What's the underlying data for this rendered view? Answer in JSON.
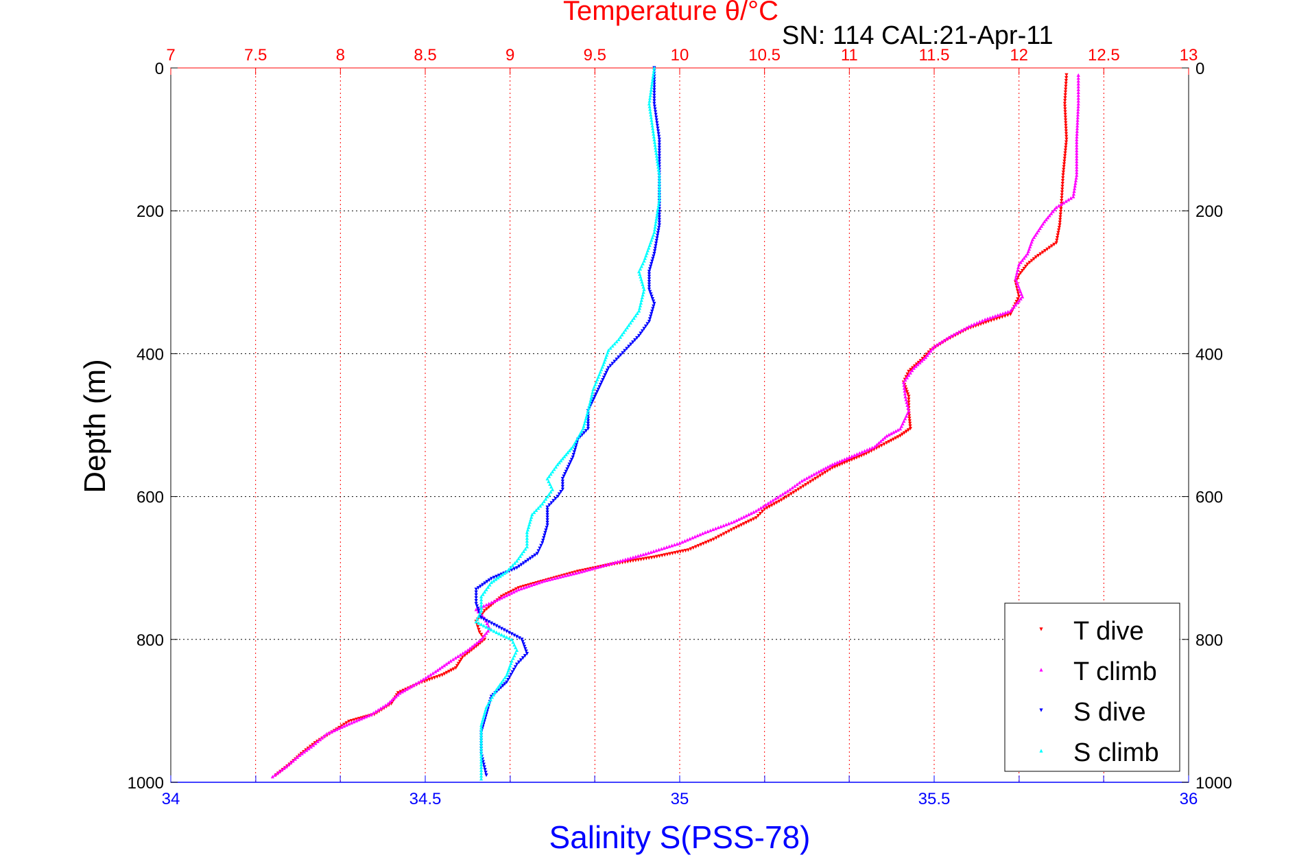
{
  "chart_data": {
    "type": "scatter",
    "title_top": "Temperature θ/°C",
    "subtitle": "SN: 114  CAL:21-Apr-11",
    "ylabel": "Depth (m)",
    "xlabel_bottom": "Salinity S(PSS-78)",
    "ylim": [
      0,
      1000
    ],
    "y_reversed": true,
    "y_ticks": [
      0,
      200,
      400,
      600,
      800,
      1000
    ],
    "y_tick_labels": [
      "0",
      "200",
      "400",
      "600",
      "800",
      "1000"
    ],
    "x_top_axis": {
      "quantity": "temperature",
      "range": [
        7,
        13
      ],
      "ticks": [
        7,
        7.5,
        8,
        8.5,
        9,
        9.5,
        10,
        10.5,
        11,
        11.5,
        12,
        12.5,
        13
      ],
      "tick_labels": [
        "7",
        "7.5",
        "8",
        "8.5",
        "9",
        "9.5",
        "10",
        "10.5",
        "11",
        "11.5",
        "12",
        "12.5",
        "13"
      ],
      "color": "#ff0000"
    },
    "x_bottom_axis": {
      "quantity": "salinity",
      "range": [
        34,
        36
      ],
      "ticks": [
        34,
        34.5,
        35,
        35.5,
        36
      ],
      "tick_labels": [
        "34",
        "34.5",
        "35",
        "35.5",
        "36"
      ],
      "minor_ticks": [
        34.167,
        34.333,
        34.667,
        34.833,
        35.167,
        35.333,
        35.667,
        35.833
      ],
      "color": "#0000ff"
    },
    "grid": true,
    "legend_position": "bottom-right",
    "legend": [
      "T dive",
      "T climb",
      "S dive",
      "S climb"
    ],
    "series": [
      {
        "name": "T dive",
        "axis": "top",
        "color": "#ff0000",
        "marker": "triangle-down",
        "points": [
          [
            12.28,
            10
          ],
          [
            12.27,
            50
          ],
          [
            12.28,
            100
          ],
          [
            12.26,
            150
          ],
          [
            12.25,
            190
          ],
          [
            12.24,
            220
          ],
          [
            12.22,
            245
          ],
          [
            12.1,
            265
          ],
          [
            12.05,
            275
          ],
          [
            12.0,
            290
          ],
          [
            11.98,
            300
          ],
          [
            12.0,
            320
          ],
          [
            11.95,
            345
          ],
          [
            11.82,
            355
          ],
          [
            11.7,
            365
          ],
          [
            11.58,
            380
          ],
          [
            11.48,
            395
          ],
          [
            11.42,
            410
          ],
          [
            11.35,
            425
          ],
          [
            11.32,
            440
          ],
          [
            11.35,
            460
          ],
          [
            11.35,
            480
          ],
          [
            11.36,
            505
          ],
          [
            11.3,
            515
          ],
          [
            11.22,
            525
          ],
          [
            11.1,
            540
          ],
          [
            11.0,
            550
          ],
          [
            10.9,
            560
          ],
          [
            10.8,
            575
          ],
          [
            10.7,
            590
          ],
          [
            10.6,
            605
          ],
          [
            10.5,
            618
          ],
          [
            10.45,
            630
          ],
          [
            10.32,
            645
          ],
          [
            10.2,
            660
          ],
          [
            10.05,
            675
          ],
          [
            9.85,
            685
          ],
          [
            9.6,
            695
          ],
          [
            9.4,
            705
          ],
          [
            9.2,
            718
          ],
          [
            9.05,
            728
          ],
          [
            8.95,
            740
          ],
          [
            8.85,
            760
          ],
          [
            8.8,
            775
          ],
          [
            8.82,
            790
          ],
          [
            8.85,
            800
          ],
          [
            8.8,
            810
          ],
          [
            8.72,
            825
          ],
          [
            8.68,
            840
          ],
          [
            8.6,
            850
          ],
          [
            8.48,
            860
          ],
          [
            8.34,
            875
          ],
          [
            8.3,
            890
          ],
          [
            8.2,
            905
          ],
          [
            8.05,
            915
          ],
          [
            7.95,
            930
          ],
          [
            7.85,
            945
          ],
          [
            7.77,
            960
          ],
          [
            7.7,
            975
          ],
          [
            7.62,
            990
          ]
        ]
      },
      {
        "name": "T climb",
        "axis": "top",
        "color": "#ff00ff",
        "marker": "triangle-up",
        "points": [
          [
            12.35,
            10
          ],
          [
            12.35,
            50
          ],
          [
            12.34,
            100
          ],
          [
            12.34,
            150
          ],
          [
            12.32,
            180
          ],
          [
            12.22,
            195
          ],
          [
            12.15,
            215
          ],
          [
            12.08,
            240
          ],
          [
            12.05,
            260
          ],
          [
            12.0,
            275
          ],
          [
            11.98,
            295
          ],
          [
            12.02,
            320
          ],
          [
            11.95,
            340
          ],
          [
            11.8,
            352
          ],
          [
            11.72,
            360
          ],
          [
            11.6,
            375
          ],
          [
            11.5,
            390
          ],
          [
            11.45,
            405
          ],
          [
            11.38,
            420
          ],
          [
            11.32,
            440
          ],
          [
            11.33,
            460
          ],
          [
            11.35,
            480
          ],
          [
            11.3,
            505
          ],
          [
            11.22,
            515
          ],
          [
            11.15,
            530
          ],
          [
            11.0,
            545
          ],
          [
            10.9,
            555
          ],
          [
            10.82,
            565
          ],
          [
            10.72,
            578
          ],
          [
            10.65,
            590
          ],
          [
            10.55,
            605
          ],
          [
            10.45,
            620
          ],
          [
            10.32,
            635
          ],
          [
            10.15,
            650
          ],
          [
            10.0,
            665
          ],
          [
            9.8,
            680
          ],
          [
            9.65,
            690
          ],
          [
            9.42,
            705
          ],
          [
            9.2,
            718
          ],
          [
            9.05,
            730
          ],
          [
            8.92,
            745
          ],
          [
            8.8,
            758
          ],
          [
            8.85,
            770
          ],
          [
            8.88,
            785
          ],
          [
            8.83,
            800
          ],
          [
            8.75,
            815
          ],
          [
            8.65,
            830
          ],
          [
            8.56,
            845
          ],
          [
            8.46,
            860
          ],
          [
            8.35,
            875
          ],
          [
            8.28,
            890
          ],
          [
            8.18,
            905
          ],
          [
            8.05,
            918
          ],
          [
            7.92,
            932
          ],
          [
            7.84,
            948
          ],
          [
            7.76,
            962
          ],
          [
            7.68,
            978
          ],
          [
            7.6,
            992
          ]
        ]
      },
      {
        "name": "S dive",
        "axis": "bottom",
        "color": "#0000ff",
        "marker": "triangle-down",
        "points": [
          [
            34.95,
            0
          ],
          [
            34.95,
            50
          ],
          [
            34.96,
            100
          ],
          [
            34.96,
            150
          ],
          [
            34.96,
            190
          ],
          [
            34.96,
            220
          ],
          [
            34.95,
            260
          ],
          [
            34.94,
            285
          ],
          [
            34.94,
            310
          ],
          [
            34.95,
            330
          ],
          [
            34.94,
            355
          ],
          [
            34.92,
            375
          ],
          [
            34.9,
            390
          ],
          [
            34.88,
            405
          ],
          [
            34.86,
            420
          ],
          [
            34.84,
            450
          ],
          [
            34.82,
            480
          ],
          [
            34.82,
            505
          ],
          [
            34.8,
            520
          ],
          [
            34.79,
            545
          ],
          [
            34.77,
            575
          ],
          [
            34.77,
            590
          ],
          [
            34.76,
            600
          ],
          [
            34.74,
            615
          ],
          [
            34.74,
            640
          ],
          [
            34.73,
            665
          ],
          [
            34.72,
            680
          ],
          [
            34.68,
            700
          ],
          [
            34.63,
            715
          ],
          [
            34.6,
            730
          ],
          [
            34.6,
            750
          ],
          [
            34.61,
            770
          ],
          [
            34.65,
            785
          ],
          [
            34.69,
            800
          ],
          [
            34.7,
            820
          ],
          [
            34.68,
            835
          ],
          [
            34.66,
            860
          ],
          [
            34.63,
            880
          ],
          [
            34.62,
            905
          ],
          [
            34.61,
            930
          ],
          [
            34.61,
            960
          ],
          [
            34.62,
            990
          ]
        ]
      },
      {
        "name": "S climb",
        "axis": "bottom",
        "color": "#00ffff",
        "marker": "triangle-up",
        "points": [
          [
            34.95,
            0
          ],
          [
            34.94,
            50
          ],
          [
            34.95,
            100
          ],
          [
            34.96,
            150
          ],
          [
            34.96,
            185
          ],
          [
            34.95,
            230
          ],
          [
            34.93,
            270
          ],
          [
            34.92,
            285
          ],
          [
            34.93,
            310
          ],
          [
            34.92,
            340
          ],
          [
            34.9,
            360
          ],
          [
            34.88,
            380
          ],
          [
            34.86,
            395
          ],
          [
            34.85,
            415
          ],
          [
            34.83,
            450
          ],
          [
            34.82,
            480
          ],
          [
            34.81,
            505
          ],
          [
            34.79,
            530
          ],
          [
            34.76,
            555
          ],
          [
            34.74,
            575
          ],
          [
            34.75,
            590
          ],
          [
            34.73,
            610
          ],
          [
            34.71,
            625
          ],
          [
            34.7,
            650
          ],
          [
            34.7,
            670
          ],
          [
            34.68,
            690
          ],
          [
            34.66,
            705
          ],
          [
            34.63,
            720
          ],
          [
            34.61,
            740
          ],
          [
            34.61,
            760
          ],
          [
            34.6,
            775
          ],
          [
            34.64,
            790
          ],
          [
            34.67,
            800
          ],
          [
            34.68,
            815
          ],
          [
            34.67,
            830
          ],
          [
            34.66,
            850
          ],
          [
            34.64,
            870
          ],
          [
            34.62,
            895
          ],
          [
            34.61,
            920
          ],
          [
            34.61,
            945
          ],
          [
            34.61,
            975
          ],
          [
            34.61,
            995
          ]
        ]
      }
    ]
  }
}
